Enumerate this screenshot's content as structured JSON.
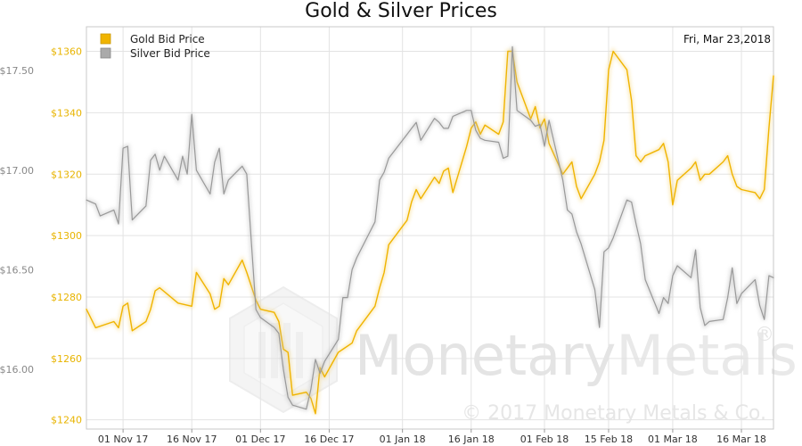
{
  "chart_data": {
    "type": "line",
    "title": "Gold & Silver Prices",
    "date_label": "Fri, Mar 23,2018",
    "x_ticks": [
      "01 Nov 17",
      "16 Nov 17",
      "01 Dec 17",
      "16 Dec 17",
      "01 Jan 18",
      "16 Jan 18",
      "01 Feb 18",
      "15 Feb 18",
      "01 Mar 18",
      "16 Mar 18"
    ],
    "x_range": [
      "2017-10-24",
      "2018-03-23"
    ],
    "y_left": {
      "ticks": [
        "$17.50",
        "$17.00",
        "$16.50",
        "$16.00"
      ],
      "values": [
        17.5,
        17.0,
        16.5,
        16.0
      ],
      "range": [
        15.7,
        17.72
      ],
      "color": "#888888"
    },
    "y_right": {
      "ticks": [
        "$1360",
        "$1340",
        "$1320",
        "$1300",
        "$1280",
        "$1260",
        "$1240"
      ],
      "values": [
        1360,
        1340,
        1320,
        1300,
        1280,
        1260,
        1240
      ],
      "range": [
        1237,
        1368
      ],
      "color": "#e8b400"
    },
    "grid": true,
    "legend_position": "top-left",
    "series": [
      {
        "name": "Gold Bid Price",
        "axis": "right",
        "color": "#f0b400",
        "x": [
          "2017-10-24",
          "2017-10-26",
          "2017-10-30",
          "2017-10-31",
          "2017-11-01",
          "2017-11-02",
          "2017-11-03",
          "2017-11-06",
          "2017-11-07",
          "2017-11-08",
          "2017-11-09",
          "2017-11-13",
          "2017-11-16",
          "2017-11-17",
          "2017-11-20",
          "2017-11-21",
          "2017-11-22",
          "2017-11-23",
          "2017-11-24",
          "2017-11-27",
          "2017-11-28",
          "2017-11-30",
          "2017-12-01",
          "2017-12-04",
          "2017-12-05",
          "2017-12-06",
          "2017-12-07",
          "2017-12-08",
          "2017-12-11",
          "2017-12-12",
          "2017-12-13",
          "2017-12-14",
          "2017-12-15",
          "2017-12-18",
          "2017-12-19",
          "2017-12-21",
          "2017-12-22",
          "2017-12-26",
          "2017-12-27",
          "2017-12-28",
          "2017-12-29",
          "2018-01-02",
          "2018-01-03",
          "2018-01-04",
          "2018-01-05",
          "2018-01-08",
          "2018-01-09",
          "2018-01-10",
          "2018-01-11",
          "2018-01-12",
          "2018-01-15",
          "2018-01-16",
          "2018-01-17",
          "2018-01-18",
          "2018-01-19",
          "2018-01-22",
          "2018-01-23",
          "2018-01-24",
          "2018-01-25",
          "2018-01-26",
          "2018-01-29",
          "2018-01-30",
          "2018-01-31",
          "2018-02-01",
          "2018-02-02",
          "2018-02-05",
          "2018-02-06",
          "2018-02-07",
          "2018-02-08",
          "2018-02-09",
          "2018-02-12",
          "2018-02-13",
          "2018-02-14",
          "2018-02-15",
          "2018-02-16",
          "2018-02-19",
          "2018-02-20",
          "2018-02-21",
          "2018-02-22",
          "2018-02-23",
          "2018-02-26",
          "2018-02-27",
          "2018-02-28",
          "2018-03-01",
          "2018-03-02",
          "2018-03-05",
          "2018-03-06",
          "2018-03-07",
          "2018-03-08",
          "2018-03-09",
          "2018-03-12",
          "2018-03-13",
          "2018-03-14",
          "2018-03-15",
          "2018-03-16",
          "2018-03-19",
          "2018-03-20",
          "2018-03-21",
          "2018-03-22",
          "2018-03-23"
        ],
        "values": [
          1276,
          1270,
          1272,
          1270,
          1277,
          1278,
          1269,
          1272,
          1276,
          1282,
          1283,
          1278,
          1277,
          1288,
          1281,
          1276,
          1277,
          1286,
          1284,
          1292,
          1288,
          1279,
          1276,
          1275,
          1272,
          1263,
          1262,
          1248,
          1249,
          1247,
          1242,
          1257,
          1254,
          1262,
          1263,
          1265,
          1269,
          1277,
          1283,
          1288,
          1297,
          1305,
          1311,
          1315,
          1312,
          1319,
          1317,
          1321,
          1322,
          1314,
          1329,
          1335,
          1337,
          1333,
          1336,
          1333,
          1337,
          1360,
          1360,
          1350,
          1338,
          1342,
          1335,
          1338,
          1330,
          1320,
          1322,
          1324,
          1316,
          1312,
          1320,
          1324,
          1331,
          1354,
          1360,
          1354,
          1344,
          1326,
          1324,
          1326,
          1328,
          1330,
          1324,
          1310,
          1318,
          1322,
          1324,
          1318,
          1320,
          1320,
          1324,
          1326,
          1320,
          1316,
          1315,
          1314,
          1312,
          1315,
          1335,
          1352
        ]
      },
      {
        "name": "Silver Bid Price",
        "axis": "left",
        "color": "#999999",
        "x": [
          "2017-10-24",
          "2017-10-26",
          "2017-10-27",
          "2017-10-30",
          "2017-10-31",
          "2017-11-01",
          "2017-11-02",
          "2017-11-03",
          "2017-11-06",
          "2017-11-07",
          "2017-11-08",
          "2017-11-09",
          "2017-11-10",
          "2017-11-13",
          "2017-11-14",
          "2017-11-15",
          "2017-11-16",
          "2017-11-17",
          "2017-11-20",
          "2017-11-21",
          "2017-11-22",
          "2017-11-23",
          "2017-11-24",
          "2017-11-27",
          "2017-11-28",
          "2017-11-30",
          "2017-12-01",
          "2017-12-04",
          "2017-12-05",
          "2017-12-06",
          "2017-12-07",
          "2017-12-08",
          "2017-12-11",
          "2017-12-12",
          "2017-12-13",
          "2017-12-14",
          "2017-12-15",
          "2017-12-18",
          "2017-12-19",
          "2017-12-20",
          "2017-12-21",
          "2017-12-22",
          "2017-12-26",
          "2017-12-27",
          "2017-12-28",
          "2017-12-29",
          "2018-01-02",
          "2018-01-03",
          "2018-01-04",
          "2018-01-05",
          "2018-01-08",
          "2018-01-09",
          "2018-01-10",
          "2018-01-11",
          "2018-01-12",
          "2018-01-15",
          "2018-01-16",
          "2018-01-17",
          "2018-01-18",
          "2018-01-19",
          "2018-01-22",
          "2018-01-23",
          "2018-01-24",
          "2018-01-25",
          "2018-01-26",
          "2018-01-29",
          "2018-01-30",
          "2018-01-31",
          "2018-02-01",
          "2018-02-02",
          "2018-02-05",
          "2018-02-06",
          "2018-02-07",
          "2018-02-08",
          "2018-02-09",
          "2018-02-12",
          "2018-02-13",
          "2018-02-14",
          "2018-02-15",
          "2018-02-16",
          "2018-02-19",
          "2018-02-20",
          "2018-02-21",
          "2018-02-22",
          "2018-02-23",
          "2018-02-26",
          "2018-02-27",
          "2018-02-28",
          "2018-03-01",
          "2018-03-02",
          "2018-03-05",
          "2018-03-06",
          "2018-03-07",
          "2018-03-08",
          "2018-03-09",
          "2018-03-12",
          "2018-03-13",
          "2018-03-14",
          "2018-03-15",
          "2018-03-16",
          "2018-03-19",
          "2018-03-20",
          "2018-03-21",
          "2018-03-22",
          "2018-03-23"
        ],
        "values": [
          16.85,
          16.83,
          16.77,
          16.8,
          16.73,
          17.11,
          17.12,
          16.75,
          16.82,
          17.05,
          17.08,
          17.0,
          17.07,
          16.95,
          17.07,
          16.98,
          17.28,
          17.0,
          16.88,
          17.04,
          17.11,
          16.88,
          16.95,
          17.02,
          16.98,
          16.3,
          16.26,
          16.21,
          16.18,
          16.0,
          15.86,
          15.82,
          15.8,
          15.9,
          16.05,
          15.98,
          16.04,
          16.15,
          16.36,
          16.36,
          16.5,
          16.56,
          16.74,
          16.95,
          16.99,
          17.06,
          17.18,
          17.21,
          17.24,
          17.15,
          17.26,
          17.24,
          17.21,
          17.21,
          17.27,
          17.3,
          17.3,
          17.2,
          17.16,
          17.15,
          17.14,
          17.06,
          17.07,
          17.62,
          17.3,
          17.25,
          17.22,
          17.23,
          17.12,
          17.25,
          16.95,
          16.8,
          16.78,
          16.69,
          16.63,
          16.4,
          16.21,
          16.59,
          16.61,
          16.66,
          16.85,
          16.84,
          16.73,
          16.63,
          16.45,
          16.28,
          16.36,
          16.33,
          16.47,
          16.52,
          16.46,
          16.6,
          16.31,
          16.22,
          16.24,
          16.25,
          16.36,
          16.51,
          16.33,
          16.38,
          16.45,
          16.32,
          16.25,
          16.47,
          16.46
        ]
      }
    ]
  },
  "watermark": {
    "brand": "MonetaryMetals",
    "brand_part1": "Monetary",
    "brand_part2": "Metals",
    "registered": "®",
    "copyright": "© 2017 Monetary Metals & Co."
  }
}
